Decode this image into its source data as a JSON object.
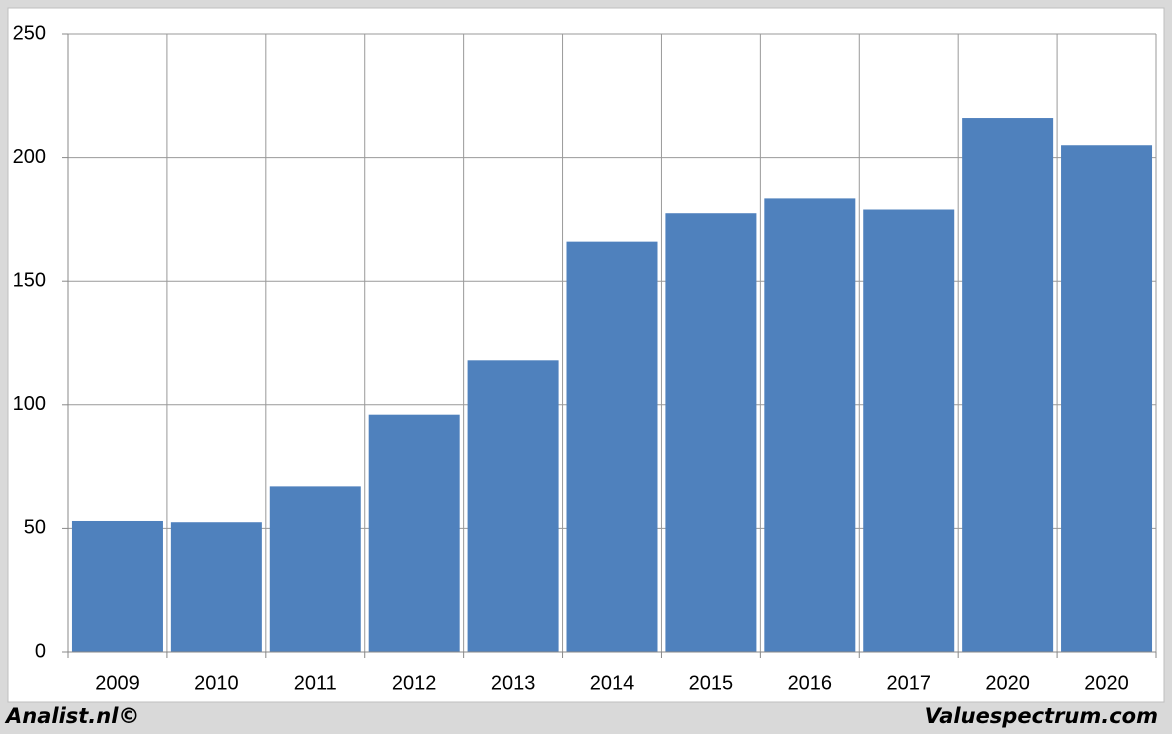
{
  "chart_data": {
    "type": "bar",
    "categories": [
      "2009",
      "2010",
      "2011",
      "2012",
      "2013",
      "2014",
      "2015",
      "2016",
      "2017",
      "2020",
      "2020"
    ],
    "values": [
      53,
      52.5,
      67,
      96,
      118,
      166,
      177.5,
      183.5,
      179,
      216,
      205
    ],
    "color": "#4f81bd",
    "ylim": [
      0,
      250
    ],
    "yticks": [
      0,
      50,
      100,
      150,
      200,
      250
    ],
    "grid": true,
    "footer_left": "Analist.nl©",
    "footer_right": "Valuespectrum.com"
  }
}
